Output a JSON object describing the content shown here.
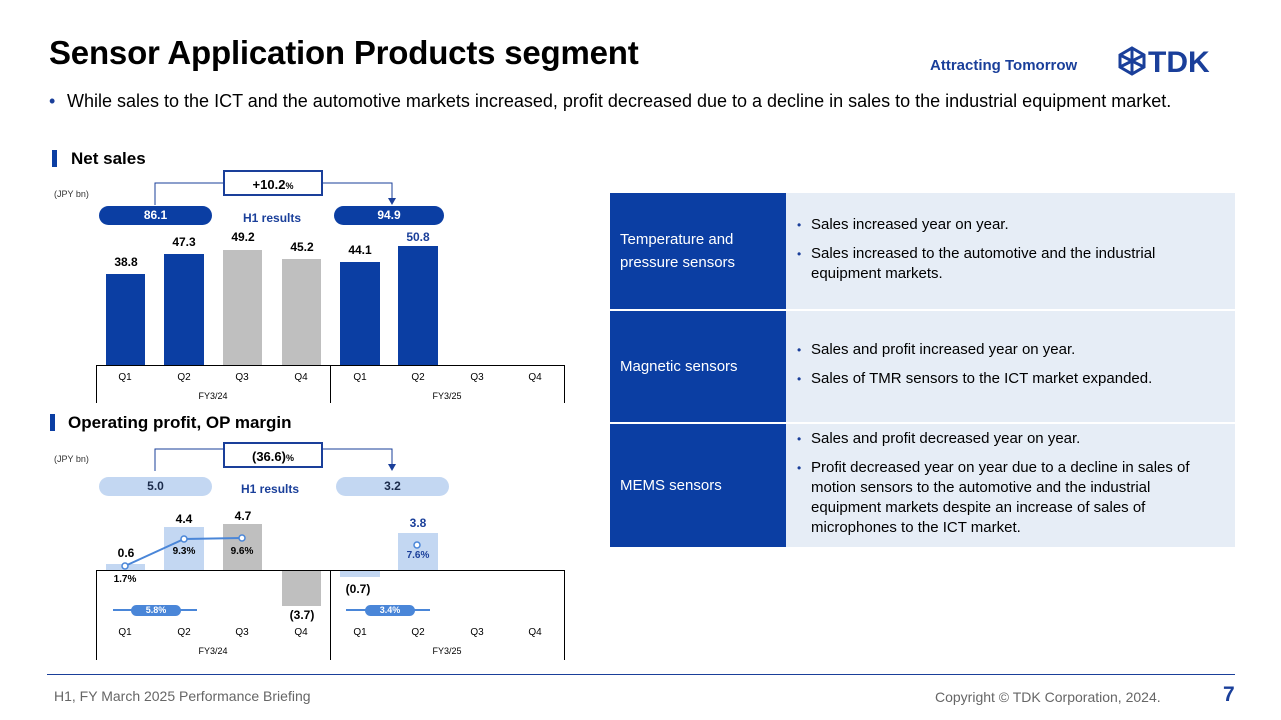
{
  "header": {
    "title": "Sensor Application Products segment",
    "tagline": "Attracting Tomorrow",
    "logo_text": "TDK"
  },
  "summary_bullet": "While sales to the ICT and the automotive markets increased, profit decreased due to a decline in sales to the industrial equipment market.",
  "net_sales": {
    "heading": "Net sales",
    "unit": "(JPY bn)",
    "growth": "+10.2",
    "growth_unit": "%",
    "h1_label": "H1 results",
    "h1_prev": "86.1",
    "h1_curr": "94.9",
    "bar_labels": [
      "38.8",
      "47.3",
      "49.2",
      "45.2",
      "44.1",
      "50.8"
    ]
  },
  "operating_profit": {
    "heading": "Operating profit, OP margin",
    "unit": "(JPY bn)",
    "growth": "(36.6)",
    "growth_unit": "%",
    "h1_label": "H1 results",
    "h1_prev": "5.0",
    "h1_curr": "3.2",
    "bar_labels": [
      "0.6",
      "4.4",
      "4.7",
      "(3.7)",
      "(0.7)",
      "3.8"
    ],
    "margin_labels": [
      "1.7%",
      "9.3%",
      "9.6%",
      "7.6%"
    ],
    "avg_margin_prev": "5.8%",
    "avg_margin_curr": "3.4%"
  },
  "axis": {
    "quarters": [
      "Q1",
      "Q2",
      "Q3",
      "Q4",
      "Q1",
      "Q2",
      "Q3",
      "Q4"
    ],
    "fy_prev": "FY3/24",
    "fy_curr": "FY3/25"
  },
  "chart_data": [
    {
      "type": "bar",
      "title": "Net sales",
      "ylabel": "(JPY bn)",
      "categories": [
        "FY3/24 Q1",
        "FY3/24 Q2",
        "FY3/24 Q3",
        "FY3/24 Q4",
        "FY3/25 Q1",
        "FY3/25 Q2",
        "FY3/25 Q3",
        "FY3/25 Q4"
      ],
      "values": [
        38.8,
        47.3,
        49.2,
        45.2,
        44.1,
        50.8,
        null,
        null
      ],
      "bar_colors": [
        "#0b3ea3",
        "#0b3ea3",
        "#bfbfbf",
        "#bfbfbf",
        "#0b3ea3",
        "#0b3ea3",
        null,
        null
      ],
      "annotations": {
        "h1_fy24": 86.1,
        "h1_fy25": 94.9,
        "yoy_change_pct": 10.2
      }
    },
    {
      "type": "bar",
      "title": "Operating profit, OP margin",
      "ylabel": "(JPY bn)",
      "categories": [
        "FY3/24 Q1",
        "FY3/24 Q2",
        "FY3/24 Q3",
        "FY3/24 Q4",
        "FY3/25 Q1",
        "FY3/25 Q2",
        "FY3/25 Q3",
        "FY3/25 Q4"
      ],
      "values": [
        0.6,
        4.4,
        4.7,
        -3.7,
        -0.7,
        3.8,
        null,
        null
      ],
      "op_margin_pct": [
        1.7,
        9.3,
        9.6,
        null,
        null,
        7.6,
        null,
        null
      ],
      "annotations": {
        "h1_fy24": 5.0,
        "h1_fy25": 3.2,
        "yoy_change_pct": -36.6,
        "h1_margin_fy24_pct": 5.8,
        "h1_margin_fy25_pct": 3.4
      }
    }
  ],
  "table": {
    "rows": [
      {
        "category": "Temperature and pressure sensors",
        "points": [
          "Sales increased year on year.",
          "Sales increased to the automotive and the industrial equipment markets."
        ]
      },
      {
        "category": "Magnetic sensors",
        "points": [
          "Sales and profit increased year on year.",
          "Sales of TMR sensors to the ICT market expanded."
        ]
      },
      {
        "category": "MEMS sensors",
        "points": [
          "Sales and profit decreased year on year.",
          "Profit decreased year on year due to a decline in sales of motion sensors to the automotive and the industrial equipment markets despite an increase of sales of microphones to the ICT market."
        ]
      }
    ]
  },
  "footer": {
    "left": "H1, FY March 2025 Performance Briefing",
    "right": "Copyright © TDK Corporation, 2024.",
    "page": "7"
  },
  "colors": {
    "brand_blue": "#0b3ea3",
    "light_blue": "#c3d7f2",
    "gray": "#bfbfbf",
    "table_bg": "#e6edf6"
  }
}
